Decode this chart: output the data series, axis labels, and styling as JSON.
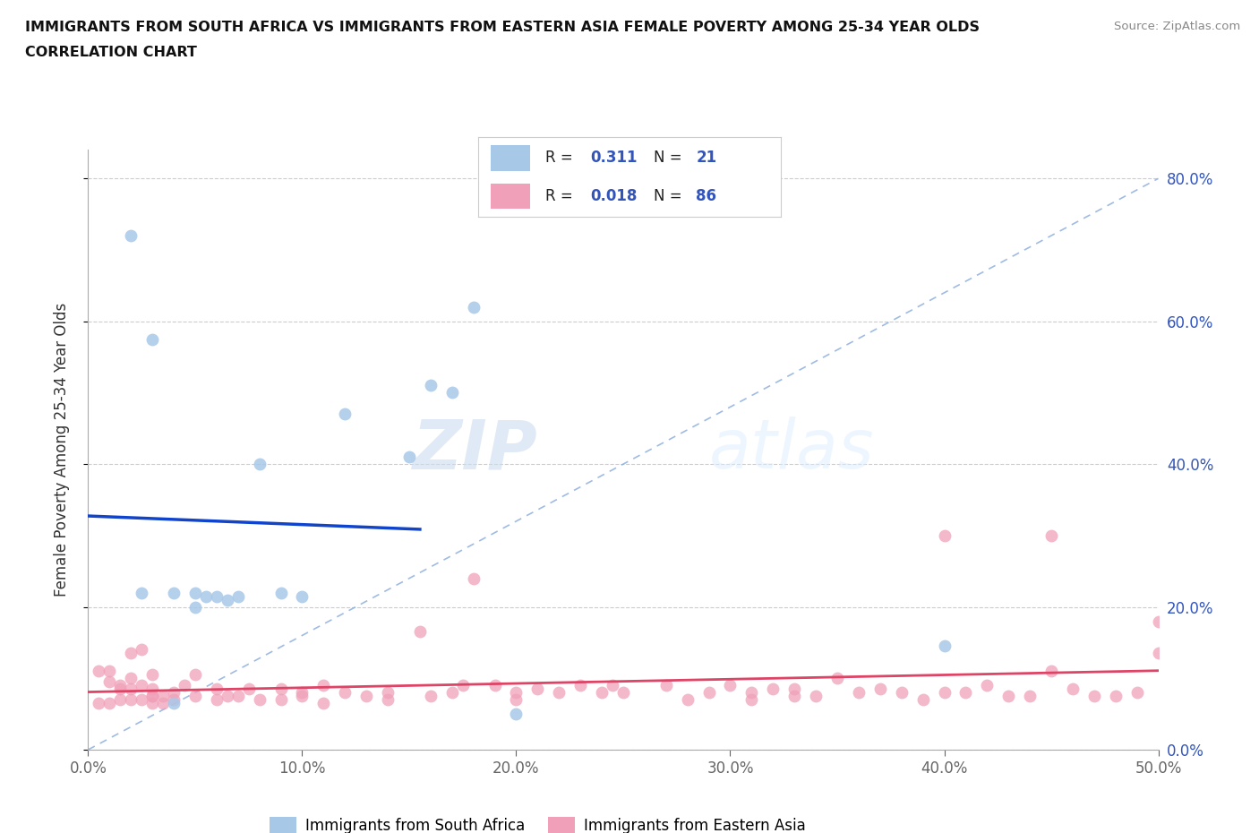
{
  "title_line1": "IMMIGRANTS FROM SOUTH AFRICA VS IMMIGRANTS FROM EASTERN ASIA FEMALE POVERTY AMONG 25-34 YEAR OLDS",
  "title_line2": "CORRELATION CHART",
  "source_text": "Source: ZipAtlas.com",
  "ylabel": "Female Poverty Among 25-34 Year Olds",
  "xlim": [
    0,
    0.5
  ],
  "ylim": [
    0,
    0.84
  ],
  "xtick_values": [
    0,
    0.1,
    0.2,
    0.3,
    0.4,
    0.5
  ],
  "ytick_values": [
    0,
    0.2,
    0.4,
    0.6,
    0.8
  ],
  "watermark_zip": "ZIP",
  "watermark_atlas": "atlas",
  "legend_r1": "0.311",
  "legend_n1": "21",
  "legend_r2": "0.018",
  "legend_n2": "86",
  "color_sa": "#a8c8e8",
  "color_ea": "#f0a0b8",
  "line_color_sa": "#1144cc",
  "line_color_ea": "#dd4466",
  "diag_color": "#88aadd",
  "background_color": "#ffffff",
  "sa_x": [
    0.02,
    0.03,
    0.04,
    0.05,
    0.055,
    0.06,
    0.065,
    0.07,
    0.08,
    0.09,
    0.1,
    0.12,
    0.15,
    0.16,
    0.17,
    0.18,
    0.2,
    0.04,
    0.025,
    0.05,
    0.4
  ],
  "sa_y": [
    0.72,
    0.575,
    0.22,
    0.22,
    0.215,
    0.215,
    0.21,
    0.215,
    0.4,
    0.22,
    0.215,
    0.47,
    0.41,
    0.51,
    0.5,
    0.62,
    0.05,
    0.065,
    0.22,
    0.2,
    0.145
  ],
  "ea_x": [
    0.005,
    0.01,
    0.01,
    0.015,
    0.015,
    0.02,
    0.02,
    0.02,
    0.025,
    0.025,
    0.03,
    0.03,
    0.03,
    0.03,
    0.035,
    0.04,
    0.04,
    0.045,
    0.05,
    0.05,
    0.06,
    0.06,
    0.065,
    0.07,
    0.075,
    0.08,
    0.09,
    0.09,
    0.1,
    0.1,
    0.11,
    0.11,
    0.12,
    0.13,
    0.14,
    0.14,
    0.155,
    0.16,
    0.17,
    0.175,
    0.18,
    0.19,
    0.2,
    0.2,
    0.21,
    0.22,
    0.23,
    0.24,
    0.245,
    0.25,
    0.27,
    0.28,
    0.29,
    0.3,
    0.31,
    0.31,
    0.32,
    0.33,
    0.33,
    0.34,
    0.35,
    0.36,
    0.37,
    0.38,
    0.39,
    0.4,
    0.4,
    0.41,
    0.42,
    0.43,
    0.44,
    0.45,
    0.45,
    0.46,
    0.47,
    0.48,
    0.49,
    0.5,
    0.5,
    0.005,
    0.01,
    0.015,
    0.02,
    0.025,
    0.03,
    0.035
  ],
  "ea_y": [
    0.065,
    0.095,
    0.065,
    0.09,
    0.07,
    0.135,
    0.085,
    0.07,
    0.14,
    0.09,
    0.105,
    0.075,
    0.085,
    0.065,
    0.075,
    0.08,
    0.07,
    0.09,
    0.105,
    0.075,
    0.085,
    0.07,
    0.075,
    0.075,
    0.085,
    0.07,
    0.085,
    0.07,
    0.075,
    0.08,
    0.09,
    0.065,
    0.08,
    0.075,
    0.07,
    0.08,
    0.165,
    0.075,
    0.08,
    0.09,
    0.24,
    0.09,
    0.07,
    0.08,
    0.085,
    0.08,
    0.09,
    0.08,
    0.09,
    0.08,
    0.09,
    0.07,
    0.08,
    0.09,
    0.08,
    0.07,
    0.085,
    0.075,
    0.085,
    0.075,
    0.1,
    0.08,
    0.085,
    0.08,
    0.07,
    0.3,
    0.08,
    0.08,
    0.09,
    0.075,
    0.075,
    0.3,
    0.11,
    0.085,
    0.075,
    0.075,
    0.08,
    0.135,
    0.18,
    0.11,
    0.11,
    0.085,
    0.1,
    0.07,
    0.075,
    0.065
  ]
}
